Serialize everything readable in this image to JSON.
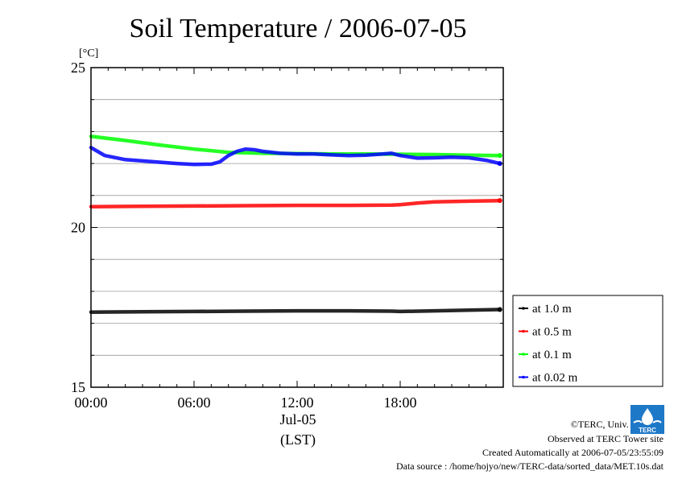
{
  "chart_data": {
    "type": "line",
    "title": "Soil Temperature / 2006-07-05",
    "ylabel": "[°C]",
    "xlabel": "(LST)",
    "xlim": [
      0,
      24
    ],
    "ylim": [
      15,
      25
    ],
    "y_major_ticks": [
      15,
      20,
      25
    ],
    "y_minor_step": 1,
    "x_ticks": [
      {
        "x": 0,
        "label": "00:00"
      },
      {
        "x": 6,
        "label": "06:00"
      },
      {
        "x": 12,
        "label": "12:00"
      },
      {
        "x": 18,
        "label": "18:00"
      }
    ],
    "date_label": "Jul-05",
    "grid": true,
    "legend_position": "right-bottom",
    "series": [
      {
        "name": "at 1.0 m",
        "color": "#000000",
        "x": [
          0,
          3,
          6,
          9,
          12,
          15,
          17.5,
          18,
          20,
          22,
          23.8
        ],
        "y": [
          17.35,
          17.36,
          17.37,
          17.38,
          17.39,
          17.39,
          17.38,
          17.37,
          17.39,
          17.41,
          17.43
        ]
      },
      {
        "name": "at 0.5 m",
        "color": "#ff0000",
        "x": [
          0,
          3,
          6,
          9,
          12,
          15,
          17.5,
          18,
          19,
          20,
          22,
          23.8
        ],
        "y": [
          20.65,
          20.66,
          20.67,
          20.68,
          20.69,
          20.69,
          20.7,
          20.71,
          20.76,
          20.8,
          20.82,
          20.84
        ]
      },
      {
        "name": "at 0.1 m",
        "color": "#00ff00",
        "x": [
          0,
          2,
          4,
          6,
          8,
          10,
          12,
          14,
          16,
          18,
          20,
          22,
          23.8
        ],
        "y": [
          22.85,
          22.72,
          22.58,
          22.45,
          22.35,
          22.32,
          22.31,
          22.3,
          22.3,
          22.29,
          22.28,
          22.26,
          22.25
        ]
      },
      {
        "name": "at 0.02 m",
        "color": "#0000ff",
        "x": [
          0,
          0.8,
          2,
          3,
          4,
          5,
          6,
          7,
          7.5,
          8,
          8.5,
          9,
          9.5,
          10,
          11,
          12,
          13,
          14,
          15,
          16,
          17,
          17.5,
          18,
          19,
          20,
          21,
          22,
          23,
          23.8
        ],
        "y": [
          22.5,
          22.25,
          22.12,
          22.08,
          22.04,
          22.0,
          21.97,
          21.98,
          22.05,
          22.25,
          22.38,
          22.45,
          22.43,
          22.38,
          22.32,
          22.3,
          22.3,
          22.27,
          22.25,
          22.26,
          22.3,
          22.32,
          22.25,
          22.17,
          22.18,
          22.2,
          22.18,
          22.1,
          22.0
        ]
      }
    ]
  },
  "credits": {
    "copyright": "©TERC, Univ. Tsukuba",
    "observed": "Observed at TERC Tower site",
    "created": "Created Automatically at 2006-07-05/23:55:09",
    "source": "Data source : /home/hojyo/new/TERC-data/sorted_data/MET.10s.dat"
  },
  "logo": {
    "text": "TERC",
    "color": "#1e78c8"
  }
}
